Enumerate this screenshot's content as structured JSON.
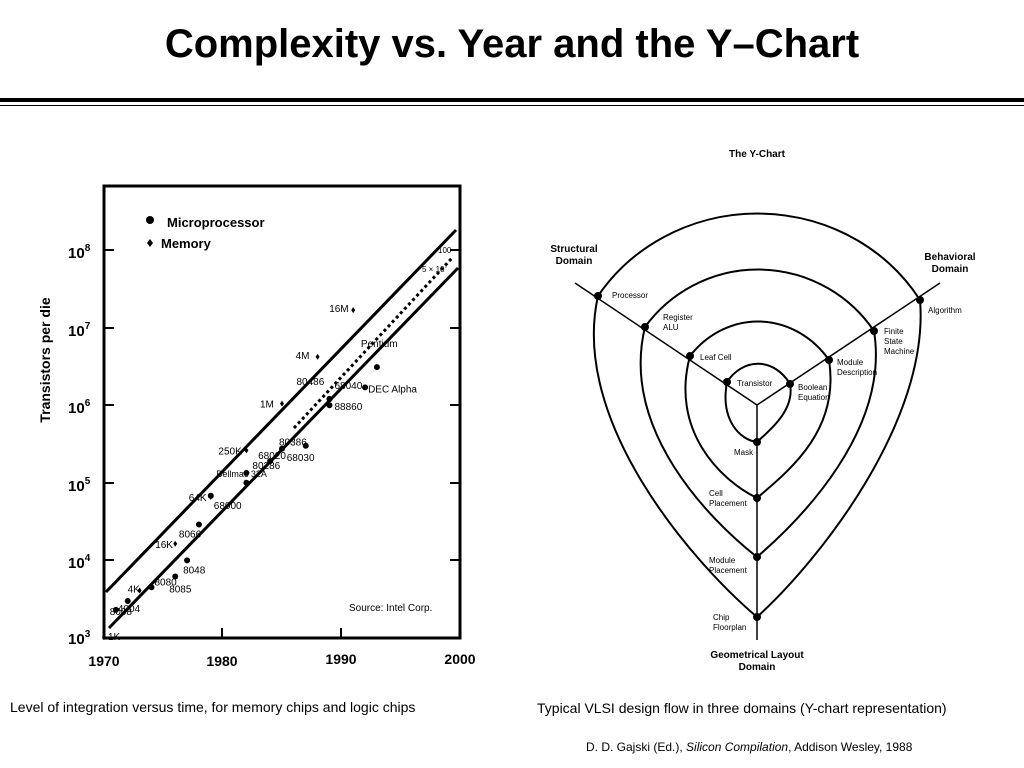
{
  "slide": {
    "title": "Complexity vs. Year and the Y–Chart"
  },
  "chart_data": {
    "type": "scatter",
    "title": "",
    "ylabel": "Transistors per die",
    "xlabel": "",
    "y_scale": "log",
    "xlim": [
      1970,
      2000
    ],
    "ylim": [
      1000,
      100000000
    ],
    "x_ticks": [
      "1970",
      "1980",
      "1990",
      "2000"
    ],
    "y_ticks": [
      {
        "base": "10",
        "exp": "3"
      },
      {
        "base": "10",
        "exp": "4"
      },
      {
        "base": "10",
        "exp": "5"
      },
      {
        "base": "10",
        "exp": "6"
      },
      {
        "base": "10",
        "exp": "7"
      },
      {
        "base": "10",
        "exp": "8"
      }
    ],
    "legend": {
      "position": "top-left",
      "items": [
        {
          "marker": "circle",
          "label": "Microprocessor"
        },
        {
          "marker": "diamond",
          "label": "Memory"
        }
      ]
    },
    "series": [
      {
        "name": "Microprocessor",
        "marker": "circle",
        "points": [
          {
            "label": "4004",
            "x": 1971,
            "y": 2300
          },
          {
            "label": "8008",
            "x": 1972,
            "y": 3000
          },
          {
            "label": "8080",
            "x": 1974,
            "y": 4500
          },
          {
            "label": "8085",
            "x": 1976,
            "y": 6200
          },
          {
            "label": "8048",
            "x": 1977,
            "y": 10000
          },
          {
            "label": "8066",
            "x": 1978,
            "y": 29000
          },
          {
            "label": "68000",
            "x": 1979,
            "y": 68000
          },
          {
            "label": "Bellmac 32A",
            "x": 1982,
            "y": 100000
          },
          {
            "label": "80286",
            "x": 1982,
            "y": 134000
          },
          {
            "label": "68020",
            "x": 1984,
            "y": 190000
          },
          {
            "label": "80386",
            "x": 1985,
            "y": 275000
          },
          {
            "label": "68030",
            "x": 1987,
            "y": 300000
          },
          {
            "label": "88860",
            "x": 1989,
            "y": 1000000
          },
          {
            "label": "68040",
            "x": 1989,
            "y": 1200000
          },
          {
            "label": "80486",
            "x": 1989,
            "y": 1200000
          },
          {
            "label": "DEC Alpha",
            "x": 1992,
            "y": 1700000
          },
          {
            "label": "Pentium",
            "x": 1993,
            "y": 3100000
          }
        ]
      },
      {
        "name": "Memory",
        "marker": "diamond",
        "points": [
          {
            "label": "1K",
            "x": 1970,
            "y": 1024
          },
          {
            "label": "4K",
            "x": 1973,
            "y": 4096
          },
          {
            "label": "16K",
            "x": 1976,
            "y": 16384
          },
          {
            "label": "64K",
            "x": 1979,
            "y": 65536
          },
          {
            "label": "250K",
            "x": 1982,
            "y": 262144
          },
          {
            "label": "1M",
            "x": 1985,
            "y": 1048576
          },
          {
            "label": "4M",
            "x": 1988,
            "y": 4194304
          },
          {
            "label": "16M",
            "x": 1991,
            "y": 16777216
          }
        ]
      }
    ],
    "annotations": [
      {
        "text": "100"
      },
      {
        "text": "5 × 10"
      },
      {
        "text": "7"
      },
      {
        "text": "Source: Intel Corp."
      }
    ]
  },
  "ychart": {
    "title": "The Y-Chart",
    "domains": {
      "structural": [
        "Structural",
        "Domain"
      ],
      "behavioral": [
        "Behavioral",
        "Domain"
      ],
      "geometrical": [
        "Geometrical Layout",
        "Domain"
      ]
    },
    "structural_items": [
      "Processor",
      [
        "Register",
        "ALU"
      ],
      "Leaf Cell",
      "Transistor"
    ],
    "behavioral_items": [
      "Algorithm",
      [
        "Finite",
        "State",
        "Machine"
      ],
      [
        "Module",
        "Description"
      ],
      [
        "Boolean",
        "Equation"
      ]
    ],
    "geometrical_items": [
      "Mask",
      [
        "Cell",
        "Placement"
      ],
      [
        "Module",
        "Placement"
      ],
      [
        "Chip",
        "Floorplan"
      ]
    ]
  },
  "captions": {
    "left": "Level of integration versus time, for memory chips and logic chips",
    "right": "Typical VLSI design flow in three domains (Y-chart representation)"
  },
  "reference": {
    "authors": "D. D. Gajski (Ed.),",
    "book": "Silicon Compilation",
    "publisher": ", Addison Wesley, 1988"
  }
}
